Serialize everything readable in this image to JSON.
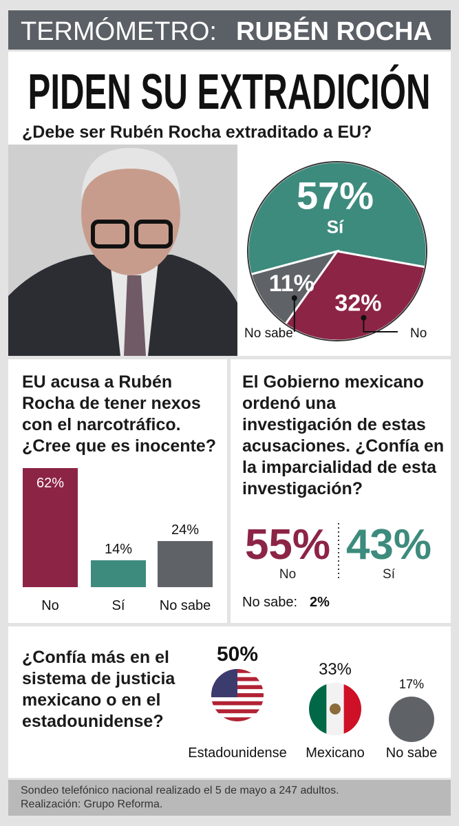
{
  "header": {
    "prefix": "TERMÓMETRO:",
    "name": "RUBÉN ROCHA"
  },
  "title": "PIDEN SU EXTRADICIÓN",
  "chart_data": [
    {
      "type": "pie",
      "title": "¿Debe ser Rubén Rocha extraditado a EU?",
      "categories": [
        "Sí",
        "No",
        "No sabe"
      ],
      "values": [
        57,
        32,
        11
      ],
      "value_labels": [
        "57%",
        "32%",
        "11%"
      ],
      "colors": [
        "#3d8b7d",
        "#8c2446",
        "#5f6368"
      ]
    },
    {
      "type": "bar",
      "title": "EU acusa a Rubén Rocha de tener nexos con el narcotráfico. ¿Cree que es inocente?",
      "categories": [
        "No",
        "Sí",
        "No sabe"
      ],
      "values": [
        62,
        14,
        24
      ],
      "value_labels": [
        "62%",
        "14%",
        "24%"
      ],
      "colors": [
        "#8c2446",
        "#3d8b7d",
        "#5f6368"
      ]
    },
    {
      "type": "stat",
      "title": "El Gobierno mexicano ordenó una investigación de estas acusaciones. ¿Confía en la imparcialidad de esta investigación?",
      "categories": [
        "No",
        "Sí",
        "No sabe:"
      ],
      "values": [
        55,
        43,
        2
      ],
      "value_labels": [
        "55%",
        "43%",
        "2%"
      ],
      "colors": [
        "#8c2446",
        "#3d8b7d",
        "#111111"
      ]
    },
    {
      "type": "bubble",
      "title": "¿Confía más en el sistema de justicia mexicano o en el estadounidense?",
      "categories": [
        "Estadounidense",
        "Mexicano",
        "No sabe"
      ],
      "values": [
        50,
        33,
        17
      ],
      "value_labels": [
        "50%",
        "33%",
        "17%"
      ]
    }
  ],
  "footer": [
    "Sondeo telefónico nacional realizado el 5 de mayo a 247 adultos.",
    "Realización: Grupo Reforma."
  ]
}
